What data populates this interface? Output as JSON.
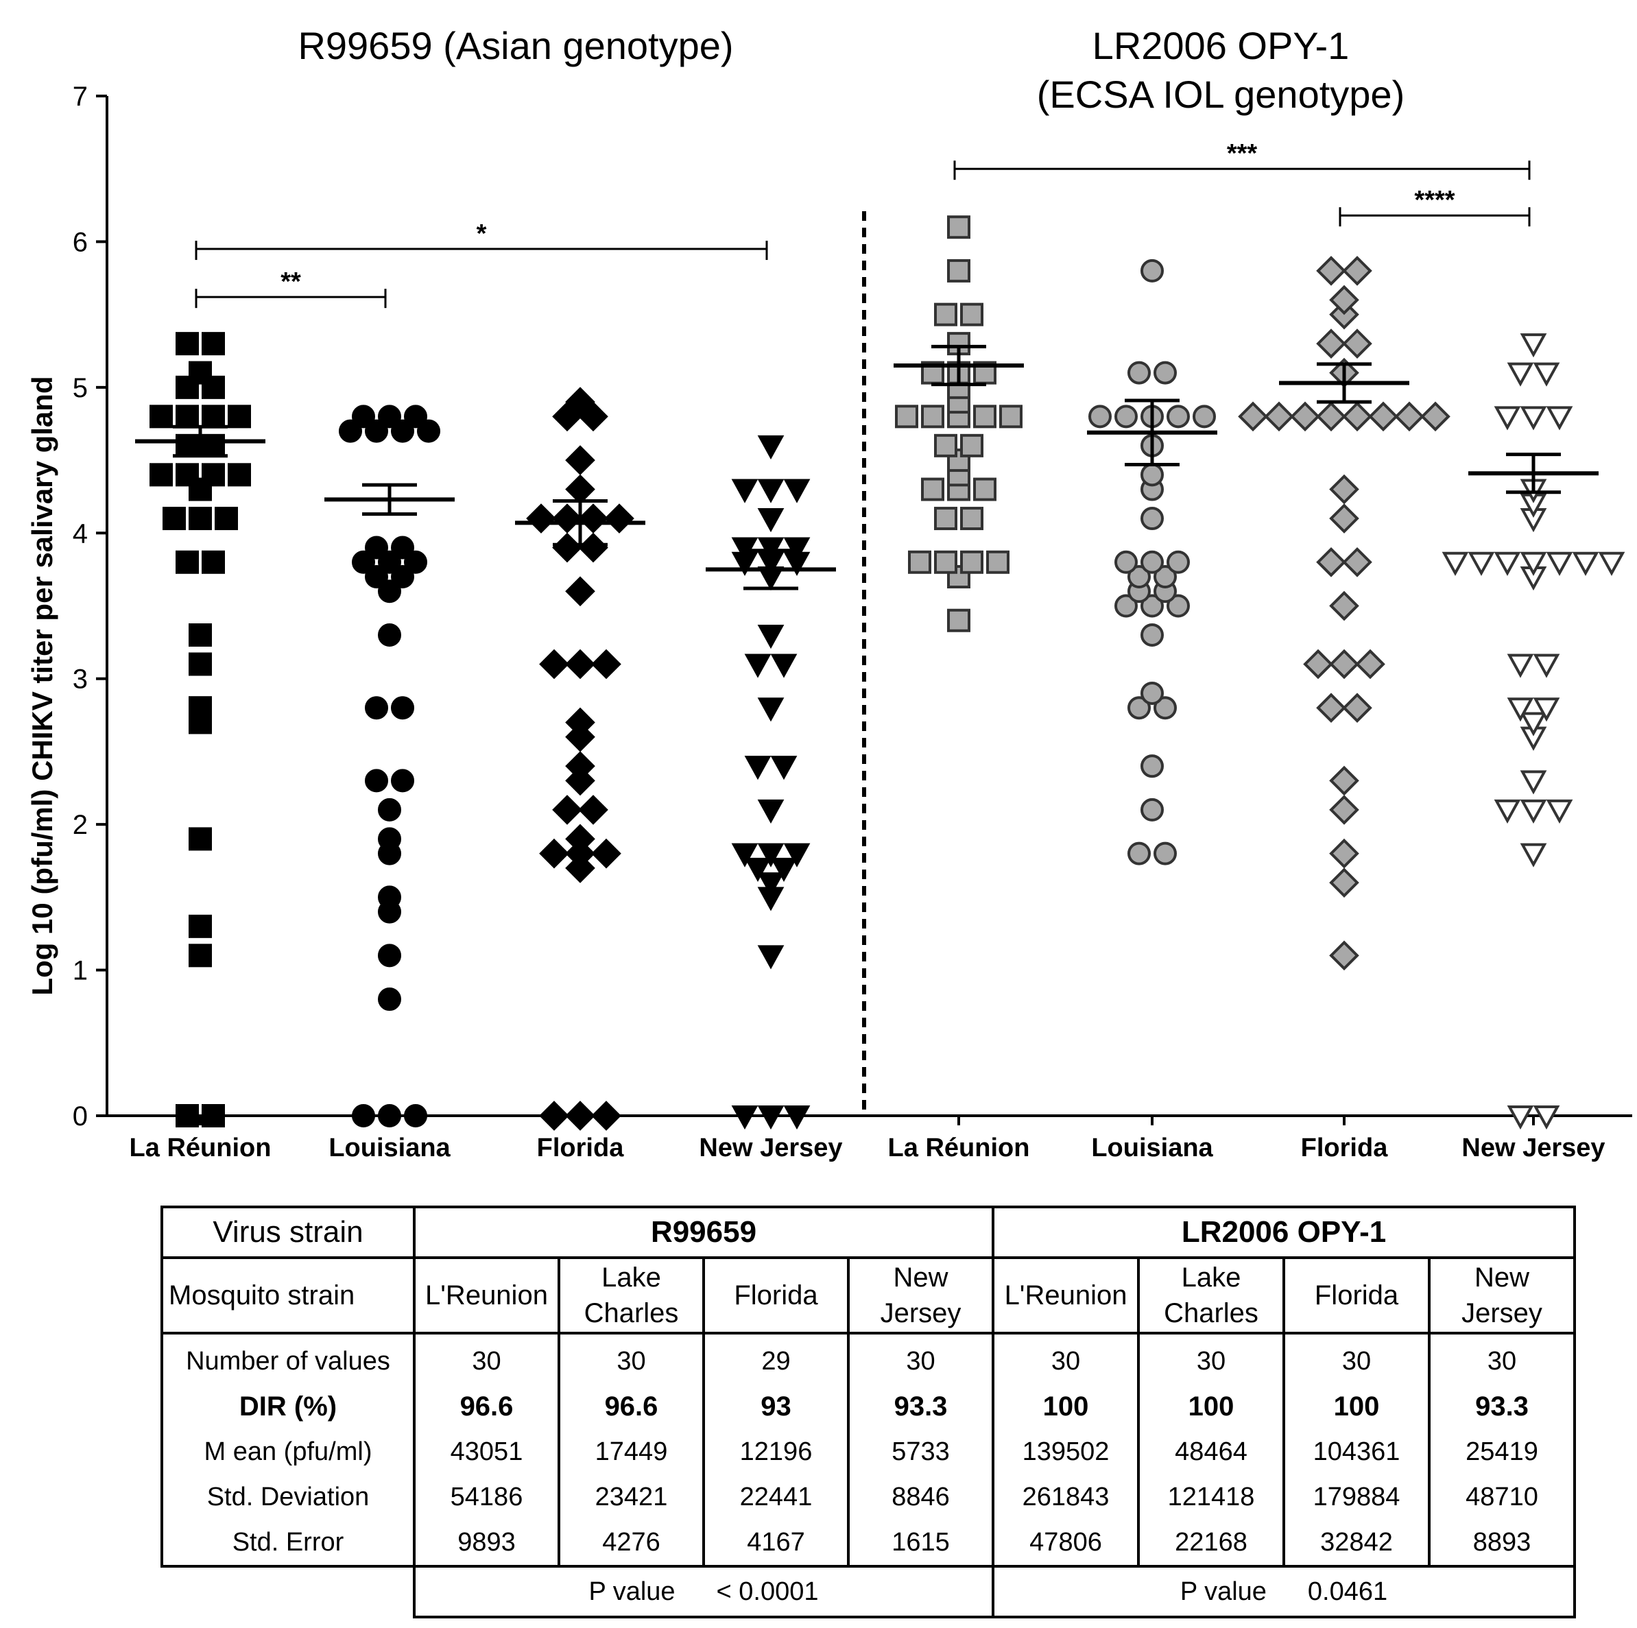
{
  "chart_data": {
    "type": "scatter",
    "title_left": "R99659 (Asian genotype)",
    "title_right_line1": "LR2006 OPY-1",
    "title_right_line2": "(ECSA IOL genotype)",
    "ylabel": "Log 10 (pfu/ml) CHIKV  titer per salivary gland",
    "ylim": [
      0,
      7
    ],
    "yticks": [
      "0",
      "1",
      "2",
      "3",
      "4",
      "5",
      "6",
      "7"
    ],
    "categories": [
      "La Réunion",
      "Louisiana",
      "Florida",
      "New Jersey",
      "La Réunion",
      "Louisiana",
      "Florida",
      "New Jersey"
    ],
    "series": [
      {
        "group": "R99659",
        "category": "La Réunion",
        "marker": "square",
        "fill": "#000000",
        "mean": 4.63,
        "sem": 0.1,
        "values": [
          5.3,
          5.3,
          5.1,
          5.0,
          5.0,
          4.8,
          4.8,
          4.8,
          4.8,
          4.6,
          4.6,
          4.4,
          4.4,
          4.4,
          4.4,
          4.3,
          4.1,
          4.1,
          4.1,
          3.8,
          3.8,
          3.3,
          3.1,
          2.8,
          2.7,
          1.9,
          1.3,
          1.1,
          0,
          0
        ]
      },
      {
        "group": "R99659",
        "category": "Louisiana",
        "marker": "circle",
        "fill": "#000000",
        "mean": 4.23,
        "sem": 0.1,
        "values": [
          4.8,
          4.8,
          4.8,
          4.7,
          4.7,
          4.7,
          4.7,
          3.9,
          3.9,
          3.8,
          3.8,
          3.8,
          3.7,
          3.7,
          3.6,
          3.3,
          2.8,
          2.8,
          2.3,
          2.3,
          2.1,
          1.9,
          1.8,
          1.5,
          1.4,
          1.1,
          0.8,
          0,
          0,
          0
        ]
      },
      {
        "group": "R99659",
        "category": "Florida",
        "marker": "diamond",
        "fill": "#000000",
        "mean": 4.07,
        "sem": 0.15,
        "values": [
          4.9,
          4.8,
          4.8,
          4.5,
          4.3,
          4.1,
          4.1,
          4.1,
          4.1,
          3.9,
          3.9,
          3.6,
          3.1,
          3.1,
          3.1,
          2.7,
          2.6,
          2.4,
          2.3,
          2.1,
          2.1,
          1.9,
          1.8,
          1.8,
          1.8,
          1.7,
          0,
          0,
          0
        ]
      },
      {
        "group": "R99659",
        "category": "New Jersey",
        "marker": "triangle-down",
        "fill": "#000000",
        "mean": 3.75,
        "sem": 0.13,
        "values": [
          4.6,
          4.3,
          4.3,
          4.3,
          4.1,
          3.9,
          3.9,
          3.9,
          3.8,
          3.8,
          3.8,
          3.7,
          3.3,
          3.1,
          3.1,
          2.8,
          2.4,
          2.4,
          2.1,
          1.8,
          1.8,
          1.8,
          1.7,
          1.7,
          1.6,
          1.5,
          1.1,
          0,
          0,
          0
        ]
      },
      {
        "group": "LR2006 OPY-1",
        "category": "La Réunion",
        "marker": "square",
        "fill": "#a8a8a8",
        "mean": 5.15,
        "sem": 0.13,
        "values": [
          6.1,
          5.8,
          5.5,
          5.5,
          5.3,
          5.1,
          5.1,
          5.1,
          5.0,
          4.9,
          4.8,
          4.8,
          4.8,
          4.8,
          4.8,
          4.6,
          4.6,
          4.5,
          4.4,
          4.3,
          4.3,
          4.3,
          4.1,
          4.1,
          3.8,
          3.8,
          3.8,
          3.7,
          3.4,
          3.8
        ]
      },
      {
        "group": "LR2006 OPY-1",
        "category": "Louisiana",
        "marker": "circle",
        "fill": "#a8a8a8",
        "mean": 4.69,
        "sem": 0.22,
        "values": [
          5.8,
          5.1,
          5.1,
          4.8,
          4.8,
          4.8,
          4.8,
          4.6,
          4.4,
          4.3,
          4.1,
          3.8,
          3.8,
          3.8,
          3.7,
          3.7,
          3.6,
          3.5,
          3.5,
          3.5,
          3.3,
          2.9,
          2.8,
          2.8,
          2.4,
          2.1,
          1.8,
          1.8,
          3.6,
          4.8
        ]
      },
      {
        "group": "LR2006 OPY-1",
        "category": "Florida",
        "marker": "diamond",
        "fill": "#a8a8a8",
        "mean": 5.03,
        "sem": 0.13,
        "values": [
          5.8,
          5.8,
          5.6,
          5.5,
          5.3,
          5.3,
          5.1,
          4.8,
          4.8,
          4.8,
          4.8,
          4.8,
          4.8,
          4.8,
          4.8,
          4.3,
          4.1,
          3.8,
          3.8,
          3.5,
          3.1,
          3.1,
          3.1,
          2.8,
          2.8,
          2.3,
          2.1,
          1.8,
          1.6,
          1.1
        ]
      },
      {
        "group": "LR2006 OPY-1",
        "category": "New Jersey",
        "marker": "triangle-down",
        "fill": "#ffffff",
        "mean": 4.41,
        "sem": 0.13,
        "values": [
          5.3,
          5.1,
          5.1,
          4.8,
          4.8,
          4.8,
          4.3,
          4.2,
          4.1,
          3.8,
          3.8,
          3.8,
          3.8,
          3.8,
          3.8,
          3.8,
          3.7,
          3.1,
          3.1,
          2.8,
          2.8,
          2.7,
          2.6,
          2.3,
          2.1,
          2.1,
          2.1,
          1.8,
          0,
          0
        ]
      }
    ],
    "significance": [
      {
        "label": "*",
        "from": 0,
        "to": 3,
        "y": 5.95
      },
      {
        "label": "**",
        "from": 0,
        "to": 1,
        "y": 5.62
      },
      {
        "label": "***",
        "from": 4,
        "to": 7,
        "y": 6.5
      },
      {
        "label": "****",
        "from": 6,
        "to": 7,
        "y": 6.18
      }
    ],
    "divider_after_category": 3
  },
  "table": {
    "virus_label": "Virus strain",
    "group1": "R99659",
    "group2": "LR2006 OPY-1",
    "mosquito_label": "Mosquito strain",
    "mosquito_strains": [
      [
        "L'Reunion"
      ],
      [
        "Lake",
        "Charles"
      ],
      [
        "Florida"
      ],
      [
        "New",
        "Jersey"
      ],
      [
        "L'Reunion"
      ],
      [
        "Lake",
        "Charles"
      ],
      [
        "Florida"
      ],
      [
        "New",
        "Jersey"
      ]
    ],
    "rows": [
      {
        "label": "Number of values",
        "bold": false,
        "values": [
          "30",
          "30",
          "29",
          "30",
          "30",
          "30",
          "30",
          "30"
        ]
      },
      {
        "label": "DIR (%)",
        "bold": true,
        "values": [
          "96.6",
          "96.6",
          "93",
          "93.3",
          "100",
          "100",
          "100",
          "93.3"
        ]
      },
      {
        "label": "M ean (pfu/ml)",
        "bold": false,
        "values": [
          "43051",
          "17449",
          "12196",
          "5733",
          "139502",
          "48464",
          "104361",
          "25419"
        ]
      },
      {
        "label": "Std. Deviation",
        "bold": false,
        "values": [
          "54186",
          "23421",
          "22441",
          "8846",
          "261843",
          "121418",
          "179884",
          "48710"
        ]
      },
      {
        "label": "Std. Error",
        "bold": false,
        "values": [
          "9893",
          "4276",
          "4167",
          "1615",
          "47806",
          "22168",
          "32842",
          "8893"
        ]
      }
    ],
    "p_label": "P value",
    "p_value_1": "< 0.0001",
    "p_value_2": "0.0461"
  }
}
